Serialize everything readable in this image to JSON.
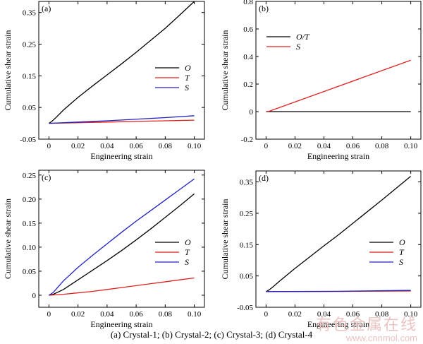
{
  "caption": "(a) Crystal-1; (b) Crystal-2; (c) Crystal-3; (d) Crystal-4",
  "watermark": {
    "cn": "有色金属在线",
    "url": "www.cnnmol.com"
  },
  "chart_data": [
    {
      "type": "line",
      "panel_label": "(a)",
      "xlabel": "Engineering strain",
      "ylabel": "Cumulative shear strain",
      "xlim": [
        -0.007,
        0.107
      ],
      "ylim": [
        -0.05,
        0.385
      ],
      "xticks": [
        0,
        0.02,
        0.04,
        0.06,
        0.08,
        0.1
      ],
      "xtick_labels": [
        "0",
        "0.02",
        "0.04",
        "0.06",
        "0.08",
        "0.10"
      ],
      "yticks": [
        -0.05,
        0.05,
        0.15,
        0.25,
        0.35
      ],
      "ytick_labels": [
        "-0.05",
        "0.05",
        "0.15",
        "0.25",
        "0.35"
      ],
      "legend_position": "right-middle",
      "series": [
        {
          "name": "O",
          "color": "#000000",
          "x": [
            0,
            0.002,
            0.005,
            0.01,
            0.02,
            0.03,
            0.04,
            0.05,
            0.06,
            0.07,
            0.08,
            0.09,
            0.1
          ],
          "y": [
            0,
            0.006,
            0.019,
            0.042,
            0.082,
            0.118,
            0.153,
            0.188,
            0.224,
            0.262,
            0.3,
            0.342,
            0.385
          ]
        },
        {
          "name": "T",
          "color": "#e02020",
          "x": [
            0,
            0.02,
            0.04,
            0.06,
            0.08,
            0.1
          ],
          "y": [
            0,
            0.002,
            0.004,
            0.006,
            0.008,
            0.01
          ]
        },
        {
          "name": "S",
          "color": "#2020c0",
          "x": [
            0,
            0.02,
            0.04,
            0.06,
            0.08,
            0.1
          ],
          "y": [
            0,
            0.004,
            0.008,
            0.013,
            0.018,
            0.024
          ]
        }
      ]
    },
    {
      "type": "line",
      "panel_label": "(b)",
      "xlabel": "Engineering strain",
      "ylabel": "Cumulative shear strain",
      "xlim": [
        -0.007,
        0.107
      ],
      "ylim": [
        -0.2,
        0.8
      ],
      "xticks": [
        0,
        0.02,
        0.04,
        0.06,
        0.08,
        0.1
      ],
      "xtick_labels": [
        "0",
        "0.02",
        "0.04",
        "0.06",
        "0.08",
        "0.10"
      ],
      "yticks": [
        -0.2,
        0,
        0.2,
        0.4,
        0.6,
        0.8
      ],
      "ytick_labels": [
        "-0.2",
        "0",
        "0.2",
        "0.4",
        "0.6",
        "0.8"
      ],
      "legend_position": "top-left",
      "series": [
        {
          "name": "O/T",
          "color": "#000000",
          "x": [
            0,
            0.1
          ],
          "y": [
            0,
            0
          ]
        },
        {
          "name": "S",
          "color": "#e02020",
          "x": [
            0,
            0.002,
            0.1
          ],
          "y": [
            0,
            0.002,
            0.373
          ]
        }
      ]
    },
    {
      "type": "line",
      "panel_label": "(c)",
      "xlabel": "Engineering strain",
      "ylabel": "Cumulative shear strain",
      "xlim": [
        -0.007,
        0.107
      ],
      "ylim": [
        -0.025,
        0.26
      ],
      "xticks": [
        0,
        0.02,
        0.04,
        0.06,
        0.08,
        0.1
      ],
      "xtick_labels": [
        "0",
        "0.02",
        "0.04",
        "0.06",
        "0.08",
        "0.10"
      ],
      "yticks": [
        0,
        0.05,
        0.1,
        0.15,
        0.2,
        0.25
      ],
      "ytick_labels": [
        "0",
        "0.05",
        "0.10",
        "0.15",
        "0.20",
        "0.25"
      ],
      "legend_position": "right-bottom",
      "series": [
        {
          "name": "O",
          "color": "#000000",
          "x": [
            0,
            0.003,
            0.01,
            0.02,
            0.03,
            0.04,
            0.05,
            0.06,
            0.07,
            0.08,
            0.09,
            0.1
          ],
          "y": [
            0,
            0.002,
            0.012,
            0.032,
            0.052,
            0.072,
            0.093,
            0.115,
            0.138,
            0.162,
            0.186,
            0.211
          ]
        },
        {
          "name": "T",
          "color": "#e02020",
          "x": [
            0,
            0.01,
            0.02,
            0.03,
            0.04,
            0.05,
            0.06,
            0.07,
            0.08,
            0.09,
            0.1
          ],
          "y": [
            0,
            0.002,
            0.005,
            0.008,
            0.012,
            0.016,
            0.02,
            0.024,
            0.028,
            0.032,
            0.036
          ]
        },
        {
          "name": "S",
          "color": "#2020c0",
          "x": [
            0,
            0.003,
            0.01,
            0.02,
            0.03,
            0.04,
            0.05,
            0.06,
            0.07,
            0.08,
            0.09,
            0.1
          ],
          "y": [
            0,
            0.006,
            0.03,
            0.058,
            0.083,
            0.107,
            0.131,
            0.154,
            0.176,
            0.198,
            0.22,
            0.242
          ]
        }
      ]
    },
    {
      "type": "line",
      "panel_label": "(d)",
      "xlabel": "Engineering strain",
      "ylabel": "Cumulative shear strain",
      "xlim": [
        -0.007,
        0.107
      ],
      "ylim": [
        -0.05,
        0.385
      ],
      "xticks": [
        0,
        0.02,
        0.04,
        0.06,
        0.08,
        0.1
      ],
      "xtick_labels": [
        "0",
        "0.02",
        "0.04",
        "0.06",
        "0.08",
        "0.10"
      ],
      "yticks": [
        -0.05,
        0.05,
        0.15,
        0.25,
        0.35
      ],
      "ytick_labels": [
        "-0.05",
        "0.05",
        "0.15",
        "0.25",
        "0.35"
      ],
      "legend_position": "right-bottom",
      "series": [
        {
          "name": "O",
          "color": "#000000",
          "x": [
            0,
            0.002,
            0.005,
            0.01,
            0.02,
            0.03,
            0.04,
            0.05,
            0.06,
            0.07,
            0.08,
            0.09,
            0.1
          ],
          "y": [
            0,
            0.005,
            0.016,
            0.036,
            0.074,
            0.11,
            0.146,
            0.181,
            0.218,
            0.255,
            0.292,
            0.33,
            0.368
          ]
        },
        {
          "name": "T",
          "color": "#e02020",
          "x": [
            0,
            0.05,
            0.1
          ],
          "y": [
            0,
            0.0005,
            0.002
          ]
        },
        {
          "name": "S",
          "color": "#2020c0",
          "x": [
            0,
            0.05,
            0.1
          ],
          "y": [
            0,
            0.001,
            0.004
          ]
        }
      ]
    }
  ]
}
